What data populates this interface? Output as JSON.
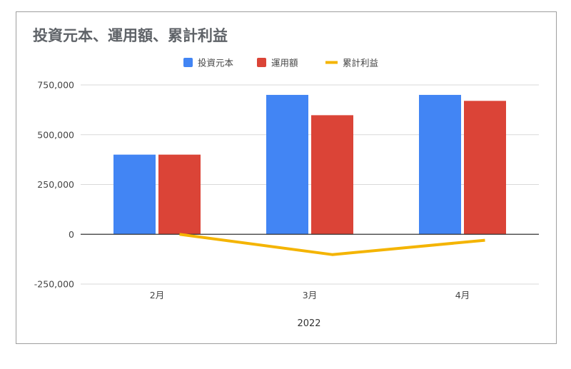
{
  "chart_data": {
    "type": "bar",
    "title": "投資元本、運用額、累計利益",
    "categories": [
      "2月",
      "3月",
      "4月"
    ],
    "x_group_label": "2022",
    "series": [
      {
        "name": "投資元本",
        "kind": "bar",
        "color": "#4285f4",
        "values": [
          400000,
          700000,
          700000
        ]
      },
      {
        "name": "運用額",
        "kind": "bar",
        "color": "#db4437",
        "values": [
          400000,
          598000,
          670000
        ]
      },
      {
        "name": "累計利益",
        "kind": "line",
        "color": "#f4b400",
        "values": [
          0,
          -102000,
          -30000
        ]
      }
    ],
    "ylim": [
      -250000,
      750000
    ],
    "yticks": [
      {
        "value": 750000,
        "label": "750,000"
      },
      {
        "value": 500000,
        "label": "500,000"
      },
      {
        "value": 250000,
        "label": "250,000"
      },
      {
        "value": 0,
        "label": "0"
      },
      {
        "value": -250000,
        "label": "-250,000"
      }
    ],
    "grid": true,
    "legend_position": "top-center"
  }
}
